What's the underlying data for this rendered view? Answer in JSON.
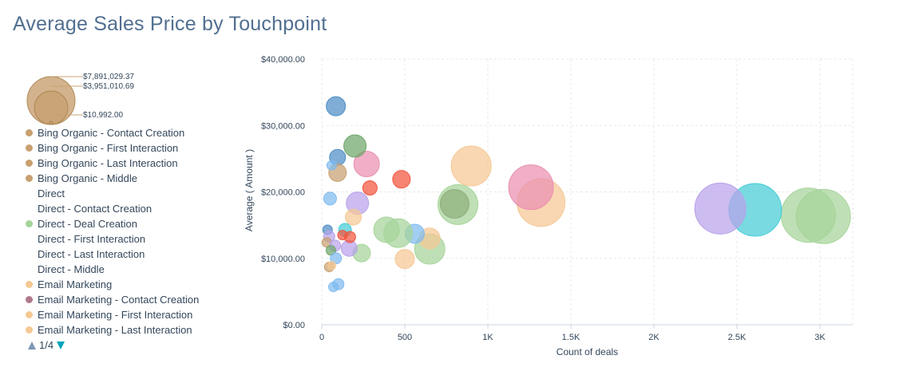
{
  "title": "Average Sales Price by Touchpoint",
  "size_legend": {
    "color": "#c8a070",
    "labels": [
      "$7,891,029.37",
      "$3,951,010.69",
      "$10,992.00"
    ]
  },
  "legend": {
    "items": [
      {
        "label": "Bing Organic - Contact Creation",
        "color": "#c8a070"
      },
      {
        "label": "Bing Organic - First Interaction",
        "color": "#c8a070"
      },
      {
        "label": "Bing Organic - Last Interaction",
        "color": "#c8a070"
      },
      {
        "label": "Bing Organic - Middle",
        "color": "#c8a070"
      },
      {
        "label": "Direct",
        "color": ""
      },
      {
        "label": "Direct - Contact Creation",
        "color": ""
      },
      {
        "label": "Direct - Deal Creation",
        "color": "#a6d49a"
      },
      {
        "label": "Direct - First Interaction",
        "color": ""
      },
      {
        "label": "Direct - Last Interaction",
        "color": ""
      },
      {
        "label": "Direct - Middle",
        "color": ""
      },
      {
        "label": "Email Marketing",
        "color": "#f5c894"
      },
      {
        "label": "Email Marketing - Contact Creation",
        "color": "#b07a8c"
      },
      {
        "label": "Email Marketing - First Interaction",
        "color": "#f5c894"
      },
      {
        "label": "Email Marketing - Last Interaction",
        "color": "#f5c894"
      }
    ],
    "pager": {
      "text": "1/4",
      "up_color": "#7c98b6",
      "down_color": "#00a4bd"
    }
  },
  "chart_data": {
    "type": "scatter",
    "xlabel": "Count of deals",
    "ylabel": "Average ( Amount )",
    "xlim": [
      -60,
      3200
    ],
    "ylim": [
      0,
      40000
    ],
    "x_ticks": [
      0,
      500,
      1000,
      1500,
      2000,
      2500,
      3000
    ],
    "x_tick_labels": [
      "0",
      "500",
      "1K",
      "1.5K",
      "2K",
      "2.5K",
      "3K"
    ],
    "y_ticks": [
      0,
      10000,
      20000,
      30000,
      40000
    ],
    "y_tick_labels": [
      "$0.00",
      "$10,000.00",
      "$20,000.00",
      "$30,000.00",
      "$40,000.00"
    ],
    "grid": true,
    "points": [
      {
        "x": 3020,
        "y": 16300,
        "r": 34,
        "color": "#a6d49a"
      },
      {
        "x": 2930,
        "y": 16500,
        "r": 34,
        "color": "#a6d49a"
      },
      {
        "x": 2610,
        "y": 17300,
        "r": 33,
        "color": "#45ccd6"
      },
      {
        "x": 2400,
        "y": 17500,
        "r": 32,
        "color": "#b8a2ea"
      },
      {
        "x": 1320,
        "y": 18400,
        "r": 30,
        "color": "#f5c894"
      },
      {
        "x": 1260,
        "y": 20700,
        "r": 28,
        "color": "#ea90b1"
      },
      {
        "x": 900,
        "y": 23900,
        "r": 25,
        "color": "#f5c894"
      },
      {
        "x": 820,
        "y": 18100,
        "r": 25,
        "color": "#a6d49a"
      },
      {
        "x": 800,
        "y": 18200,
        "r": 18,
        "color": "#8fae7c"
      },
      {
        "x": 650,
        "y": 11400,
        "r": 19,
        "color": "#a6d49a"
      },
      {
        "x": 650,
        "y": 13000,
        "r": 13,
        "color": "#f5c894"
      },
      {
        "x": 560,
        "y": 13700,
        "r": 12,
        "color": "#7fbbf0"
      },
      {
        "x": 460,
        "y": 13800,
        "r": 18,
        "color": "#a6d49a"
      },
      {
        "x": 390,
        "y": 14300,
        "r": 16,
        "color": "#a6d49a"
      },
      {
        "x": 500,
        "y": 9900,
        "r": 12,
        "color": "#f5c894"
      },
      {
        "x": 480,
        "y": 21900,
        "r": 11,
        "color": "#f2543d"
      },
      {
        "x": 290,
        "y": 20600,
        "r": 9,
        "color": "#f2543d"
      },
      {
        "x": 270,
        "y": 24200,
        "r": 16,
        "color": "#ea90b1"
      },
      {
        "x": 200,
        "y": 26900,
        "r": 14,
        "color": "#6fa66b"
      },
      {
        "x": 215,
        "y": 18300,
        "r": 14,
        "color": "#b8a2ea"
      },
      {
        "x": 190,
        "y": 16200,
        "r": 10,
        "color": "#f5c894"
      },
      {
        "x": 240,
        "y": 10800,
        "r": 11,
        "color": "#a6d49a"
      },
      {
        "x": 165,
        "y": 11500,
        "r": 10,
        "color": "#b8a2ea"
      },
      {
        "x": 140,
        "y": 14300,
        "r": 8,
        "color": "#45ccd6"
      },
      {
        "x": 170,
        "y": 13200,
        "r": 7,
        "color": "#f2543d"
      },
      {
        "x": 125,
        "y": 13500,
        "r": 6,
        "color": "#f2543d"
      },
      {
        "x": 85,
        "y": 32900,
        "r": 12,
        "color": "#4e8ec5"
      },
      {
        "x": 95,
        "y": 25200,
        "r": 10,
        "color": "#4e8ec5"
      },
      {
        "x": 95,
        "y": 22900,
        "r": 11,
        "color": "#c8a070"
      },
      {
        "x": 60,
        "y": 24000,
        "r": 6,
        "color": "#7fbbf0"
      },
      {
        "x": 50,
        "y": 19000,
        "r": 8,
        "color": "#7fbbf0"
      },
      {
        "x": 35,
        "y": 14300,
        "r": 6,
        "color": "#4e8ec5"
      },
      {
        "x": 45,
        "y": 13300,
        "r": 7,
        "color": "#b8a2ea"
      },
      {
        "x": 30,
        "y": 12400,
        "r": 6,
        "color": "#c8a070"
      },
      {
        "x": 80,
        "y": 11900,
        "r": 7,
        "color": "#b8a2ea"
      },
      {
        "x": 55,
        "y": 11200,
        "r": 6,
        "color": "#6fa66b"
      },
      {
        "x": 85,
        "y": 10000,
        "r": 7,
        "color": "#7fbbf0"
      },
      {
        "x": 45,
        "y": 8700,
        "r": 6,
        "color": "#c8a070"
      },
      {
        "x": 60,
        "y": 8900,
        "r": 5,
        "color": "#f5c894"
      },
      {
        "x": 100,
        "y": 6100,
        "r": 7,
        "color": "#7fbbf0"
      },
      {
        "x": 70,
        "y": 5700,
        "r": 6,
        "color": "#7fbbf0"
      }
    ]
  }
}
